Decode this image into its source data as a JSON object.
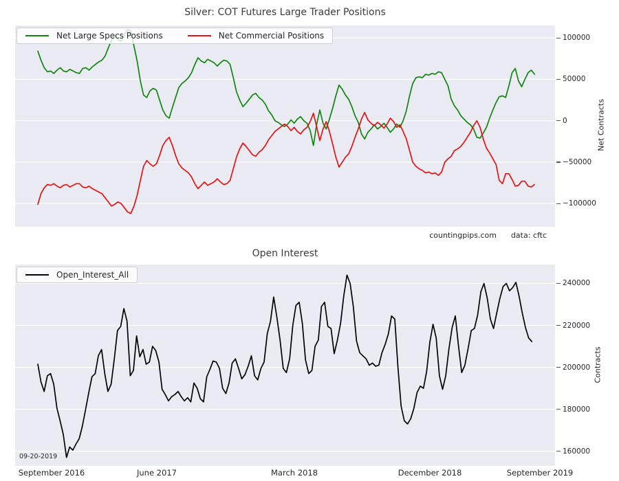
{
  "colors": {
    "specs_green": "#108510",
    "commercials_red": "#e81212",
    "open_interest_black": "#000000",
    "plot_background": "#eaeaf2",
    "gridline": "#ffffff",
    "text": "#262626"
  },
  "chart_data": [
    {
      "type": "line",
      "title": "Silver: COT Futures Large Trader Positions",
      "ylabel": "Net Contracts",
      "ylabel_side": "right",
      "ylim": [
        -128000,
        115000
      ],
      "yticks": [
        100000,
        50000,
        0,
        -50000,
        -100000
      ],
      "grid": "horizontal",
      "legend_position": "upper left",
      "legend": [
        "Net Large Specs Positions",
        "Net Commercial Positions"
      ],
      "annotations": [
        "countingpips.com",
        "data: cftc"
      ],
      "x_range": [
        "September 2016",
        "September 2019"
      ],
      "series": [
        {
          "name": "Net Large Specs Positions",
          "color": "#108510",
          "values": [
            84000,
            73000,
            64000,
            59000,
            60000,
            57000,
            61000,
            64000,
            60000,
            59000,
            62000,
            60000,
            58000,
            57000,
            63000,
            64000,
            61000,
            65000,
            68000,
            71000,
            73000,
            78000,
            88000,
            97000,
            103000,
            98000,
            96000,
            104000,
            110000,
            108000,
            90000,
            72000,
            48000,
            31000,
            28000,
            36000,
            39000,
            37000,
            25000,
            13000,
            6000,
            3000,
            16000,
            28000,
            40000,
            45000,
            48000,
            52000,
            58000,
            68000,
            76000,
            72000,
            70000,
            74000,
            72000,
            70000,
            66000,
            70000,
            73000,
            72000,
            68000,
            52000,
            35000,
            25000,
            17000,
            21000,
            26000,
            31000,
            33000,
            28000,
            25000,
            20000,
            12000,
            7000,
            0,
            -2000,
            -5000,
            -7000,
            -4000,
            1000,
            -3000,
            2000,
            5000,
            0,
            -3000,
            -12000,
            -30000,
            -5000,
            13000,
            -3000,
            -10000,
            2000,
            15000,
            30000,
            43000,
            38000,
            31000,
            26000,
            17000,
            6000,
            -2000,
            -16000,
            -22000,
            -14000,
            -10000,
            -5000,
            -10000,
            -7000,
            -3000,
            -8000,
            -14000,
            -10000,
            -4000,
            -8000,
            0,
            12000,
            30000,
            45000,
            52000,
            53000,
            52000,
            56000,
            55000,
            57000,
            56000,
            59000,
            58000,
            50000,
            42000,
            26000,
            18000,
            13000,
            6000,
            2000,
            -2000,
            -5000,
            -10000,
            -20000,
            -21000,
            -15000,
            -8000,
            3000,
            13000,
            22000,
            29000,
            30000,
            28000,
            42000,
            58000,
            63000,
            48000,
            41000,
            50000,
            58000,
            61000,
            56000
          ]
        },
        {
          "name": "Net Commercial Positions",
          "color": "#e81212",
          "values": [
            -101000,
            -88000,
            -81000,
            -77000,
            -78000,
            -76000,
            -79000,
            -81000,
            -78000,
            -77000,
            -80000,
            -78000,
            -76000,
            -76000,
            -80000,
            -81000,
            -79000,
            -82000,
            -84000,
            -86000,
            -88000,
            -93000,
            -98000,
            -103000,
            -101000,
            -98000,
            -100000,
            -105000,
            -110000,
            -112000,
            -103000,
            -90000,
            -72000,
            -55000,
            -48000,
            -52000,
            -55000,
            -52000,
            -42000,
            -30000,
            -24000,
            -20000,
            -30000,
            -42000,
            -52000,
            -57000,
            -60000,
            -63000,
            -68000,
            -76000,
            -82000,
            -78000,
            -74000,
            -78000,
            -76000,
            -74000,
            -70000,
            -74000,
            -77000,
            -76000,
            -72000,
            -58000,
            -44000,
            -34000,
            -27000,
            -31000,
            -36000,
            -41000,
            -43000,
            -38000,
            -35000,
            -30000,
            -23000,
            -18000,
            -13000,
            -10000,
            -7000,
            -4000,
            -7000,
            -12000,
            -8000,
            -13000,
            -16000,
            -11000,
            -8000,
            -1000,
            9000,
            -7000,
            -24000,
            -10000,
            -1000,
            -13000,
            -28000,
            -44000,
            -56000,
            -50000,
            -44000,
            -40000,
            -31000,
            -20000,
            -10000,
            2000,
            10000,
            1000,
            -3000,
            -6000,
            -2000,
            -5000,
            -9000,
            -4000,
            3000,
            -1000,
            -8000,
            -5000,
            -13000,
            -22000,
            -36000,
            -50000,
            -55000,
            -58000,
            -60000,
            -63000,
            -62000,
            -64000,
            -63000,
            -66000,
            -62000,
            -50000,
            -46000,
            -43000,
            -36000,
            -34000,
            -31000,
            -26000,
            -20000,
            -14000,
            -6000,
            0,
            -8000,
            -22000,
            -33000,
            -39000,
            -46000,
            -53000,
            -72000,
            -76000,
            -64000,
            -64000,
            -71000,
            -79000,
            -78000,
            -73000,
            -73000,
            -79000,
            -80000,
            -77000
          ]
        }
      ]
    },
    {
      "type": "line",
      "title": "Open Interest",
      "ylabel": "Contracts",
      "ylabel_side": "right",
      "ylim": [
        153000,
        249000
      ],
      "yticks": [
        240000,
        220000,
        200000,
        180000,
        160000
      ],
      "grid": "horizontal",
      "legend_position": "upper left",
      "legend": [
        "Open_Interest_All"
      ],
      "annotations": [
        "09-20-2019"
      ],
      "xticklabels": [
        "September 2016",
        "June 2017",
        "March 2018",
        "December 2018",
        "September 2019"
      ],
      "series": [
        {
          "name": "Open_Interest_All",
          "color": "#000000",
          "values": [
            201500,
            193000,
            188500,
            196000,
            197000,
            192000,
            180500,
            174500,
            168000,
            157000,
            162000,
            160500,
            163500,
            166000,
            172000,
            180000,
            188000,
            195500,
            197000,
            205500,
            208500,
            197000,
            188500,
            192000,
            204000,
            217500,
            219500,
            228000,
            222000,
            196000,
            198500,
            215000,
            205000,
            208500,
            201500,
            202500,
            210000,
            208000,
            202500,
            189500,
            187000,
            184000,
            186000,
            187000,
            188500,
            186000,
            184000,
            185500,
            183500,
            192500,
            190000,
            185000,
            183500,
            195500,
            199000,
            203000,
            202500,
            199500,
            190000,
            187500,
            192500,
            202000,
            204000,
            199500,
            194500,
            196500,
            200500,
            205500,
            196000,
            194000,
            199500,
            202500,
            216000,
            222000,
            233500,
            224000,
            213000,
            199500,
            197500,
            204000,
            220000,
            229500,
            231000,
            221000,
            203500,
            197000,
            198500,
            210000,
            213000,
            229000,
            231000,
            219500,
            218500,
            206500,
            213000,
            221000,
            234000,
            244000,
            240000,
            229000,
            212500,
            207000,
            205500,
            204000,
            201000,
            202000,
            200500,
            201000,
            207000,
            211000,
            216000,
            224500,
            223000,
            200000,
            181500,
            174500,
            173000,
            175500,
            180500,
            188000,
            191000,
            190000,
            198000,
            212000,
            220500,
            214000,
            196000,
            189500,
            196000,
            209000,
            219000,
            224500,
            210000,
            197500,
            201000,
            209000,
            217500,
            218500,
            225000,
            236000,
            240000,
            233000,
            223000,
            218500,
            226000,
            233000,
            238500,
            240000,
            236500,
            238000,
            240500,
            234000,
            226000,
            219000,
            214000,
            212300
          ]
        }
      ]
    }
  ]
}
